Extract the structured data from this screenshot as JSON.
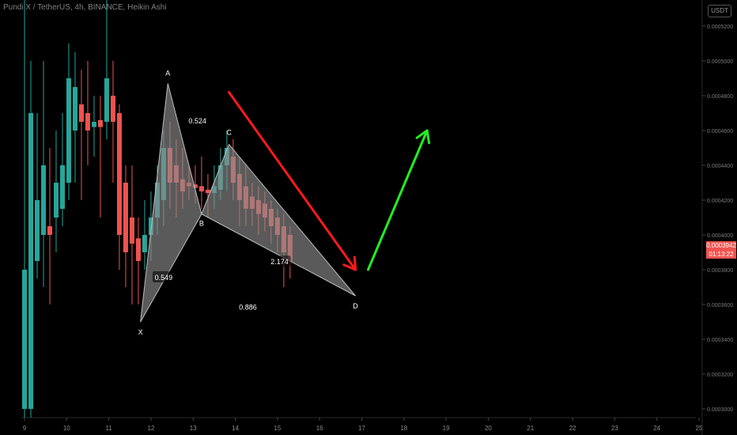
{
  "header": {
    "title": "Pundi X / TetherUS, 4h, BINANCE, Heikin Ashi",
    "currency_button": "USDT"
  },
  "price_badge": {
    "price": "0.0003942",
    "countdown": "01:13:22"
  },
  "colors": {
    "up": "#26a69a",
    "down": "#ef5350",
    "down_light": "#f7a5a5",
    "up_light": "#7fd6cb",
    "pattern_fill": "#8a8a8a",
    "arrow_down": "#ff1a1a",
    "arrow_up": "#22ee22"
  },
  "chart_data": {
    "type": "candlestick",
    "x_ticks": [
      "9",
      "10",
      "11",
      "12",
      "13",
      "14",
      "15",
      "16",
      "17",
      "18",
      "19",
      "20",
      "21",
      "22",
      "23",
      "24",
      "25"
    ],
    "y_ticks": [
      "0.0003000",
      "0.0003200",
      "0.0003400",
      "0.0003600",
      "0.0003800",
      "0.0004000",
      "0.0004200",
      "0.0004400",
      "0.0004600",
      "0.0004800",
      "0.0005000",
      "0.0005200"
    ],
    "ylim": [
      0.000295,
      0.000535
    ],
    "xlim": [
      9.0,
      25.0
    ],
    "candles": [
      {
        "x": 9.0,
        "o": 0.0003,
        "c": 0.00038,
        "h": 0.00054,
        "l": 0.000295,
        "dir": "up"
      },
      {
        "x": 9.15,
        "o": 0.0003,
        "c": 0.00047,
        "h": 0.0005,
        "l": 0.000295,
        "dir": "up"
      },
      {
        "x": 9.3,
        "o": 0.000385,
        "c": 0.00042,
        "h": 0.00047,
        "l": 0.000375,
        "dir": "up"
      },
      {
        "x": 9.45,
        "o": 0.0004,
        "c": 0.00044,
        "h": 0.0005,
        "l": 0.00037,
        "dir": "up"
      },
      {
        "x": 9.6,
        "o": 0.000405,
        "c": 0.0004,
        "h": 0.00045,
        "l": 0.00036,
        "dir": "down"
      },
      {
        "x": 9.75,
        "o": 0.00041,
        "c": 0.00043,
        "h": 0.00046,
        "l": 0.00039,
        "dir": "up"
      },
      {
        "x": 9.9,
        "o": 0.000415,
        "c": 0.00044,
        "h": 0.00047,
        "l": 0.000405,
        "dir": "up"
      },
      {
        "x": 10.05,
        "o": 0.00043,
        "c": 0.00049,
        "h": 0.00051,
        "l": 0.00042,
        "dir": "up"
      },
      {
        "x": 10.2,
        "o": 0.00046,
        "c": 0.000485,
        "h": 0.000505,
        "l": 0.00043,
        "dir": "up"
      },
      {
        "x": 10.35,
        "o": 0.000475,
        "c": 0.000465,
        "h": 0.000495,
        "l": 0.00042,
        "dir": "down"
      },
      {
        "x": 10.5,
        "o": 0.00047,
        "c": 0.00046,
        "h": 0.0005,
        "l": 0.00044,
        "dir": "down"
      },
      {
        "x": 10.65,
        "o": 0.000462,
        "c": 0.000465,
        "h": 0.00048,
        "l": 0.000445,
        "dir": "up"
      },
      {
        "x": 10.8,
        "o": 0.000466,
        "c": 0.000462,
        "h": 0.00048,
        "l": 0.00041,
        "dir": "down"
      },
      {
        "x": 10.95,
        "o": 0.000465,
        "c": 0.00049,
        "h": 0.00054,
        "l": 0.000455,
        "dir": "up"
      },
      {
        "x": 11.1,
        "o": 0.00048,
        "c": 0.000465,
        "h": 0.0005,
        "l": 0.00043,
        "dir": "down"
      },
      {
        "x": 11.25,
        "o": 0.00047,
        "c": 0.0004,
        "h": 0.000475,
        "l": 0.00038,
        "dir": "down"
      },
      {
        "x": 11.4,
        "o": 0.00043,
        "c": 0.00039,
        "h": 0.00044,
        "l": 0.00037,
        "dir": "down"
      },
      {
        "x": 11.55,
        "o": 0.00041,
        "c": 0.000395,
        "h": 0.00044,
        "l": 0.00036,
        "dir": "down"
      },
      {
        "x": 11.7,
        "o": 0.000398,
        "c": 0.000385,
        "h": 0.00041,
        "l": 0.00036,
        "dir": "down"
      },
      {
        "x": 11.85,
        "o": 0.00039,
        "c": 0.0004,
        "h": 0.00042,
        "l": 0.00038,
        "dir": "up"
      },
      {
        "x": 12.0,
        "o": 0.0004,
        "c": 0.00041,
        "h": 0.000425,
        "l": 0.000385,
        "dir": "up"
      },
      {
        "x": 12.15,
        "o": 0.00041,
        "c": 0.00043,
        "h": 0.00044,
        "l": 0.0004,
        "dir": "up"
      },
      {
        "x": 12.3,
        "o": 0.00042,
        "c": 0.00045,
        "h": 0.00046,
        "l": 0.000405,
        "dir": "up"
      },
      {
        "x": 12.45,
        "o": 0.00045,
        "c": 0.00043,
        "h": 0.000465,
        "l": 0.000415,
        "dir": "down"
      },
      {
        "x": 12.6,
        "o": 0.00044,
        "c": 0.00043,
        "h": 0.000455,
        "l": 0.00041,
        "dir": "down"
      },
      {
        "x": 12.75,
        "o": 0.000432,
        "c": 0.000425,
        "h": 0.00045,
        "l": 0.000415,
        "dir": "down"
      },
      {
        "x": 12.9,
        "o": 0.00043,
        "c": 0.000428,
        "h": 0.00044,
        "l": 0.00042,
        "dir": "down"
      },
      {
        "x": 13.05,
        "o": 0.000429,
        "c": 0.000427,
        "h": 0.00044,
        "l": 0.000418,
        "dir": "down"
      },
      {
        "x": 13.2,
        "o": 0.000428,
        "c": 0.000425,
        "h": 0.000445,
        "l": 0.000415,
        "dir": "down"
      },
      {
        "x": 13.35,
        "o": 0.000426,
        "c": 0.000424,
        "h": 0.000435,
        "l": 0.00041,
        "dir": "down"
      },
      {
        "x": 13.5,
        "o": 0.000424,
        "c": 0.000428,
        "h": 0.00044,
        "l": 0.000415,
        "dir": "up"
      },
      {
        "x": 13.65,
        "o": 0.000426,
        "c": 0.00044,
        "h": 0.00045,
        "l": 0.00042,
        "dir": "up"
      },
      {
        "x": 13.8,
        "o": 0.00044,
        "c": 0.00045,
        "h": 0.00046,
        "l": 0.000425,
        "dir": "up"
      },
      {
        "x": 13.95,
        "o": 0.000445,
        "c": 0.00043,
        "h": 0.000455,
        "l": 0.00042,
        "dir": "down"
      },
      {
        "x": 14.1,
        "o": 0.000435,
        "c": 0.00042,
        "h": 0.000445,
        "l": 0.000405,
        "dir": "down"
      },
      {
        "x": 14.25,
        "o": 0.000428,
        "c": 0.000415,
        "h": 0.00044,
        "l": 0.000405,
        "dir": "down"
      },
      {
        "x": 14.4,
        "o": 0.000422,
        "c": 0.000415,
        "h": 0.00043,
        "l": 0.000405,
        "dir": "down"
      },
      {
        "x": 14.55,
        "o": 0.00042,
        "c": 0.000412,
        "h": 0.000428,
        "l": 0.0004,
        "dir": "down"
      },
      {
        "x": 14.7,
        "o": 0.000418,
        "c": 0.00041,
        "h": 0.000425,
        "l": 0.000402,
        "dir": "down"
      },
      {
        "x": 14.85,
        "o": 0.000415,
        "c": 0.000405,
        "h": 0.00042,
        "l": 0.000395,
        "dir": "down"
      },
      {
        "x": 15.0,
        "o": 0.00041,
        "c": 0.0004,
        "h": 0.000415,
        "l": 0.00039,
        "dir": "down"
      },
      {
        "x": 15.15,
        "o": 0.000405,
        "c": 0.00039,
        "h": 0.000412,
        "l": 0.00037,
        "dir": "down"
      },
      {
        "x": 15.3,
        "o": 0.0004,
        "c": 0.000385,
        "h": 0.000405,
        "l": 0.000375,
        "dir": "down"
      }
    ],
    "pattern_points": [
      {
        "label": "X",
        "x": 11.75,
        "y": 0.00035
      },
      {
        "label": "A",
        "x": 12.4,
        "y": 0.000487
      },
      {
        "label": "B",
        "x": 13.2,
        "y": 0.000412
      },
      {
        "label": "C",
        "x": 13.85,
        "y": 0.000452
      },
      {
        "label": "D",
        "x": 16.85,
        "y": 0.000365
      }
    ],
    "ratios": [
      {
        "text": "0.524",
        "x": 13.1,
        "y": 0.000465
      },
      {
        "text": "0.549",
        "x": 12.3,
        "y": 0.000375
      },
      {
        "text": "2.174",
        "x": 15.05,
        "y": 0.000384
      },
      {
        "text": "0.886",
        "x": 14.3,
        "y": 0.000358
      }
    ],
    "arrows": [
      {
        "name": "bearish-arrow",
        "x1": 13.85,
        "y1": 0.000482,
        "x2": 16.85,
        "y2": 0.00038
      },
      {
        "name": "bullish-arrow",
        "x1": 17.15,
        "y1": 0.00038,
        "x2": 18.55,
        "y2": 0.00046
      }
    ]
  }
}
